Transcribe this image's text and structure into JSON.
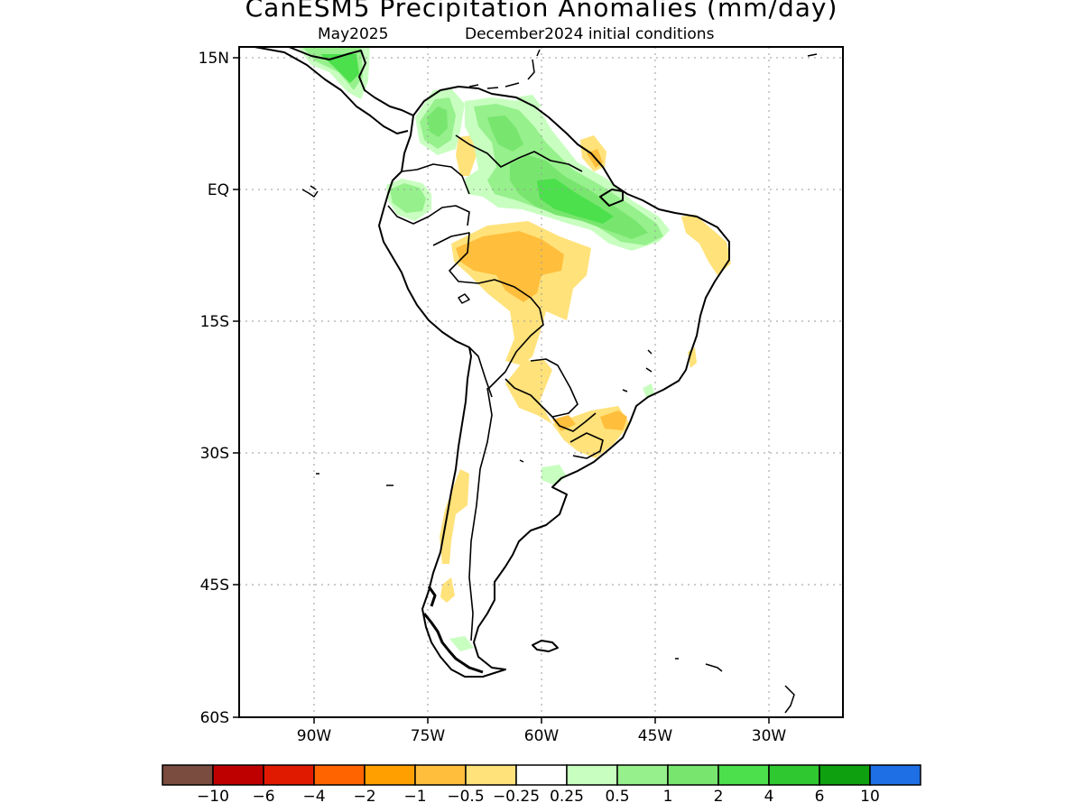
{
  "map": {
    "title": "CanESM5 Precipitation Anomalies (mm/day)",
    "subtitle_month": "May2025",
    "subtitle_init": "December2024 initial conditions",
    "lat_labels": [
      "15N",
      "EQ",
      "15S",
      "30S",
      "45S",
      "60S"
    ],
    "lon_labels": [
      "90W",
      "75W",
      "60W",
      "45W",
      "30W"
    ]
  },
  "colorbar": {
    "colors": [
      "#7a4b3f",
      "#bf0000",
      "#e01a00",
      "#ff6400",
      "#ffa000",
      "#ffbe3c",
      "#ffe27a",
      "#ffffff",
      "#c8ffc0",
      "#96f08c",
      "#78e66e",
      "#4ce04c",
      "#30c830",
      "#0ea00e",
      "#1e6ee6"
    ],
    "labels": [
      "−10",
      "−6",
      "−4",
      "−2",
      "−1",
      "−0.5",
      "−0.25",
      "0.25",
      "0.5",
      "1",
      "2",
      "4",
      "6",
      "10"
    ]
  },
  "legend_colors": {
    "wet_light": "#c8ffc0",
    "wet_mid": "#96f08c",
    "wet": "#4ce04c",
    "dry_light": "#ffe27a",
    "dry": "#ffbe3c"
  }
}
